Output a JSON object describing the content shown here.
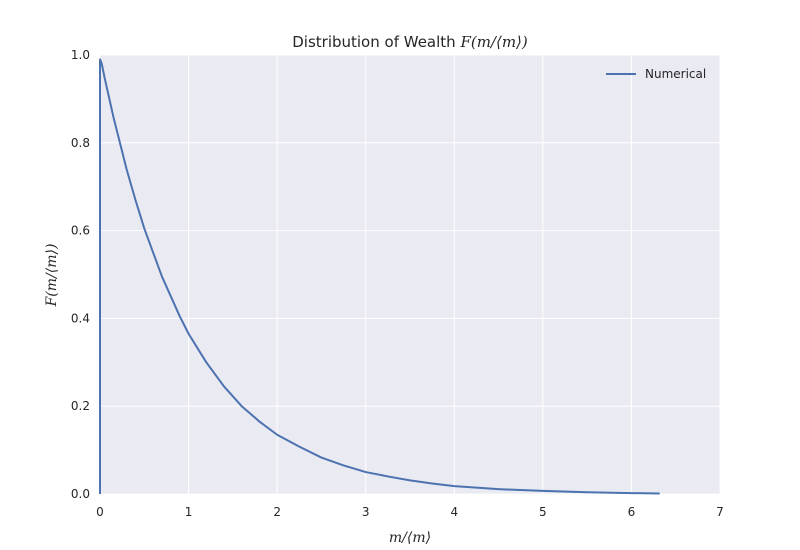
{
  "chart_data": {
    "type": "line",
    "title": {
      "prefix": "Distribution of Wealth ",
      "math": "F(m/⟨m⟩)"
    },
    "xlabel": "m/⟨m⟩",
    "ylabel": "F(m/⟨m⟩)",
    "xlim": [
      0,
      7
    ],
    "ylim": [
      0,
      1.0
    ],
    "xticks": [
      0,
      1,
      2,
      3,
      4,
      5,
      6,
      7
    ],
    "yticks": [
      0.0,
      0.2,
      0.4,
      0.6,
      0.8,
      1.0
    ],
    "ytick_labels": [
      "0.0",
      "0.2",
      "0.4",
      "0.6",
      "0.8",
      "1.0"
    ],
    "grid": true,
    "legend_position": "top-right",
    "series": [
      {
        "name": "Numerical",
        "color": "#4c72b0",
        "x": [
          0,
          0.02,
          0.05,
          0.1,
          0.15,
          0.2,
          0.3,
          0.4,
          0.5,
          0.6,
          0.7,
          0.8,
          0.9,
          1.0,
          1.2,
          1.4,
          1.6,
          1.8,
          2.0,
          2.25,
          2.5,
          2.75,
          3.0,
          3.25,
          3.5,
          3.75,
          4.0,
          4.5,
          5.0,
          5.5,
          6.0,
          6.32
        ],
        "y": [
          0.99,
          0.98,
          0.95,
          0.905,
          0.86,
          0.82,
          0.74,
          0.67,
          0.605,
          0.55,
          0.495,
          0.45,
          0.405,
          0.365,
          0.3,
          0.245,
          0.2,
          0.165,
          0.135,
          0.108,
          0.083,
          0.065,
          0.05,
          0.04,
          0.031,
          0.024,
          0.018,
          0.011,
          0.007,
          0.004,
          0.002,
          0.001
        ]
      }
    ]
  }
}
